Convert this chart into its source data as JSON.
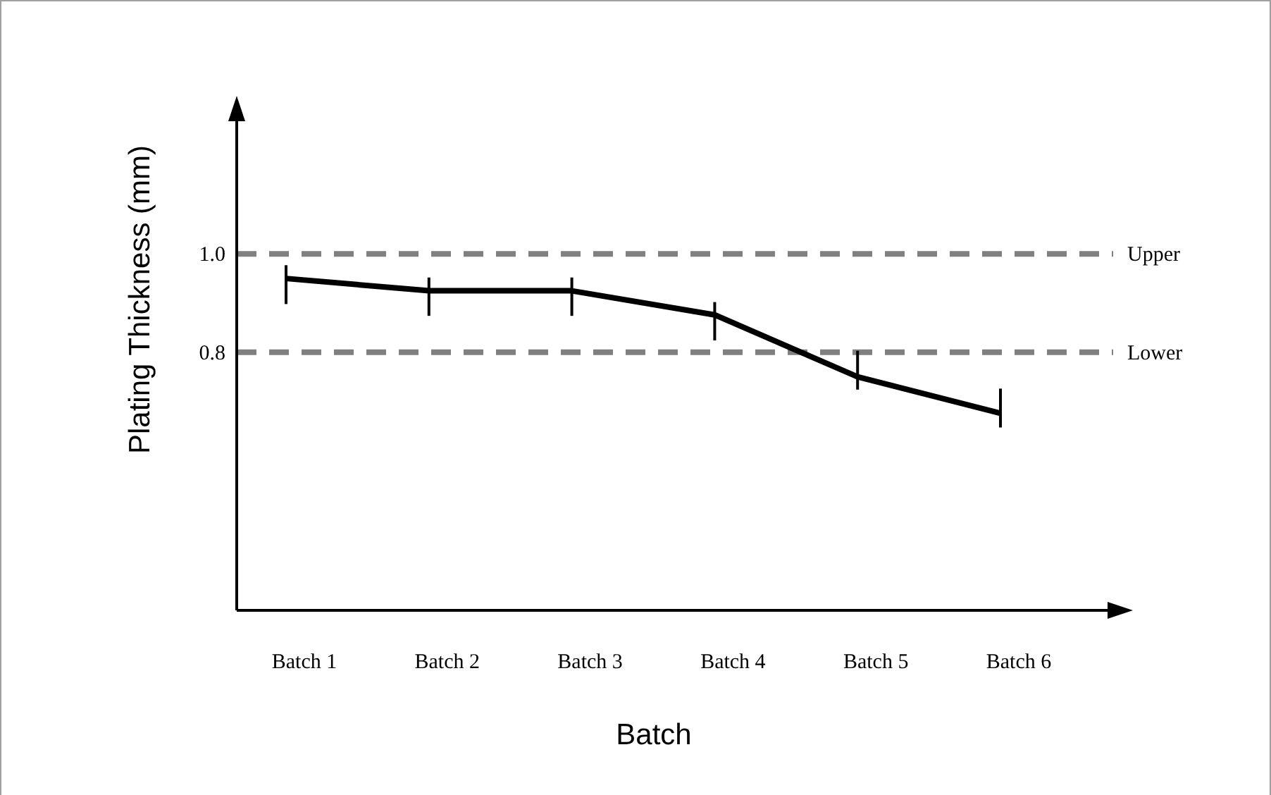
{
  "chart_data": {
    "type": "line",
    "xlabel": "Batch",
    "ylabel": "Plating Thickness (mm)",
    "categories": [
      "Batch 1",
      "Batch 2",
      "Batch 3",
      "Batch 4",
      "Batch 5",
      "Batch 6"
    ],
    "values": [
      0.95,
      0.925,
      0.925,
      0.876,
      0.75,
      0.676
    ],
    "errors": [
      [
        0.898,
        0.977
      ],
      [
        0.874,
        0.952
      ],
      [
        0.874,
        0.952
      ],
      [
        0.824,
        0.902
      ],
      [
        0.724,
        0.803
      ],
      [
        0.647,
        0.726
      ]
    ],
    "color": "#000000",
    "line_style": "solid",
    "ylim": [
      0.275,
      1.31
    ],
    "yticks": [
      {
        "value": 0.8,
        "label": "0.8"
      },
      {
        "value": 1.0,
        "label": "1.0"
      }
    ],
    "ref_lines": [
      {
        "axis": "y",
        "value": 1.0,
        "label": "Upper",
        "color": "#808080",
        "line_style": "dashed"
      },
      {
        "axis": "y",
        "value": 0.8,
        "label": "Lower",
        "color": "#808080",
        "line_style": "dashed"
      }
    ]
  }
}
